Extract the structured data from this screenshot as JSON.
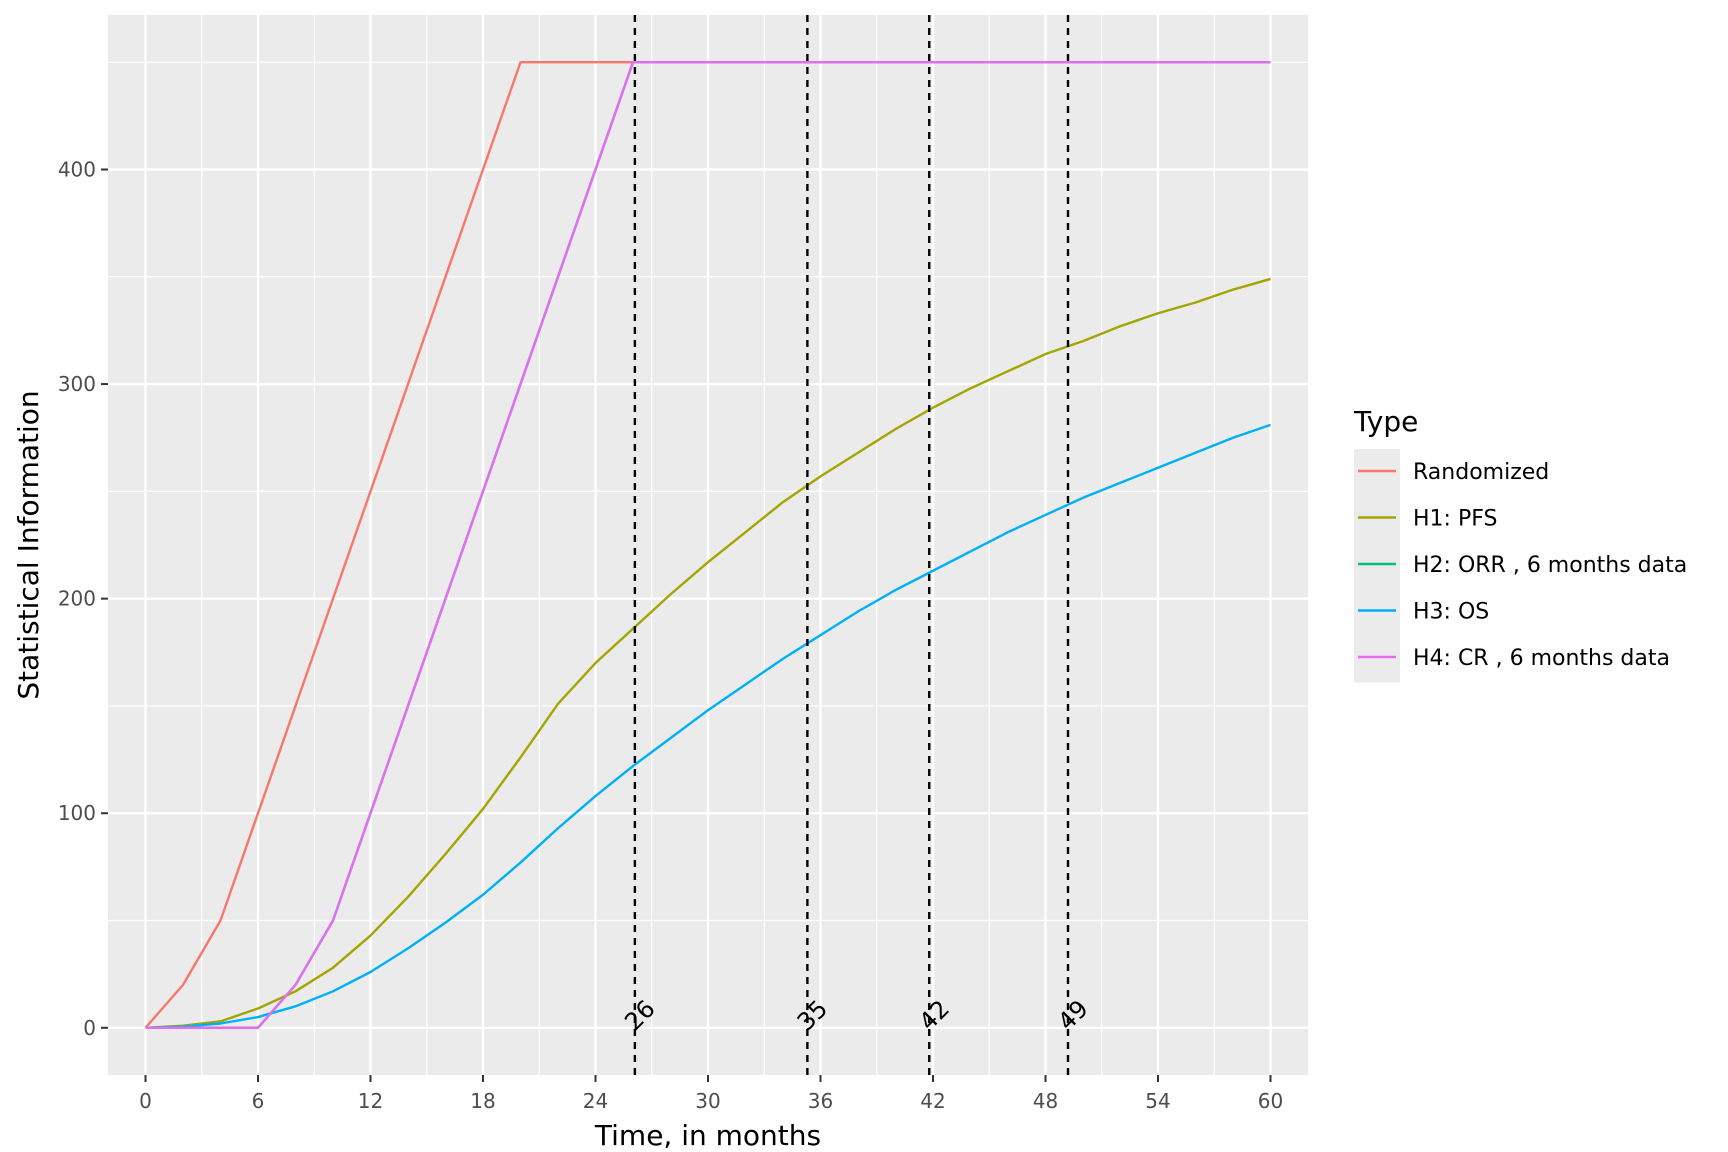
{
  "chart_data": {
    "type": "line",
    "xlabel": "Time, in months",
    "ylabel": "Statistical Information",
    "xlim": [
      -2,
      62
    ],
    "ylim": [
      -22,
      472
    ],
    "x_ticks": [
      0,
      6,
      12,
      18,
      24,
      30,
      36,
      42,
      48,
      54,
      60
    ],
    "y_ticks": [
      0,
      100,
      200,
      300,
      400
    ],
    "grid": true,
    "legend": {
      "title": "Type",
      "placement": "right"
    },
    "series": [
      {
        "name": "Randomized",
        "color": "#F8766D",
        "x": [
          0,
          2,
          4,
          6,
          20,
          60
        ],
        "y": [
          0,
          20,
          50,
          100,
          450,
          450
        ]
      },
      {
        "name": "H1: PFS",
        "color": "#A3A500",
        "x": [
          0,
          2,
          4,
          6,
          8,
          10,
          12,
          14,
          16,
          18,
          20,
          22,
          24,
          26,
          28,
          30,
          32,
          34,
          36,
          38,
          40,
          42,
          44,
          46,
          48,
          50,
          52,
          54,
          56,
          58,
          60
        ],
        "y": [
          0,
          1,
          3,
          9,
          17,
          28,
          43,
          61,
          81,
          102,
          126,
          151,
          170,
          186,
          202,
          217,
          231,
          245,
          257,
          268,
          279,
          289,
          298,
          306,
          314,
          320,
          327,
          333,
          338,
          344,
          349
        ]
      },
      {
        "name": "H2: ORR , 6 months data",
        "color": "#00BF7D",
        "x": [
          0,
          6,
          8,
          10,
          26,
          60
        ],
        "y": [
          0,
          0,
          20,
          50,
          450,
          450
        ]
      },
      {
        "name": "H3: OS",
        "color": "#00B0F6",
        "x": [
          0,
          2,
          4,
          6,
          8,
          10,
          12,
          14,
          16,
          18,
          20,
          22,
          24,
          26,
          28,
          30,
          32,
          34,
          36,
          38,
          40,
          42,
          44,
          46,
          48,
          50,
          52,
          54,
          56,
          58,
          60
        ],
        "y": [
          0,
          0.5,
          2,
          5,
          10,
          17,
          26,
          37,
          49,
          62,
          77,
          93,
          108,
          122,
          135,
          148,
          160,
          172,
          183,
          194,
          204,
          213,
          222,
          231,
          239,
          247,
          254,
          261,
          268,
          275,
          281
        ]
      },
      {
        "name": "H4: CR , 6 months data",
        "color": "#E76BF3",
        "x": [
          0,
          6,
          8,
          10,
          26,
          60
        ],
        "y": [
          0,
          0,
          20,
          50,
          450,
          450
        ]
      }
    ],
    "vertical_lines": [
      {
        "x": 26.1,
        "label": "26"
      },
      {
        "x": 35.3,
        "label": "35"
      },
      {
        "x": 41.8,
        "label": "42"
      },
      {
        "x": 49.2,
        "label": "49"
      }
    ]
  }
}
